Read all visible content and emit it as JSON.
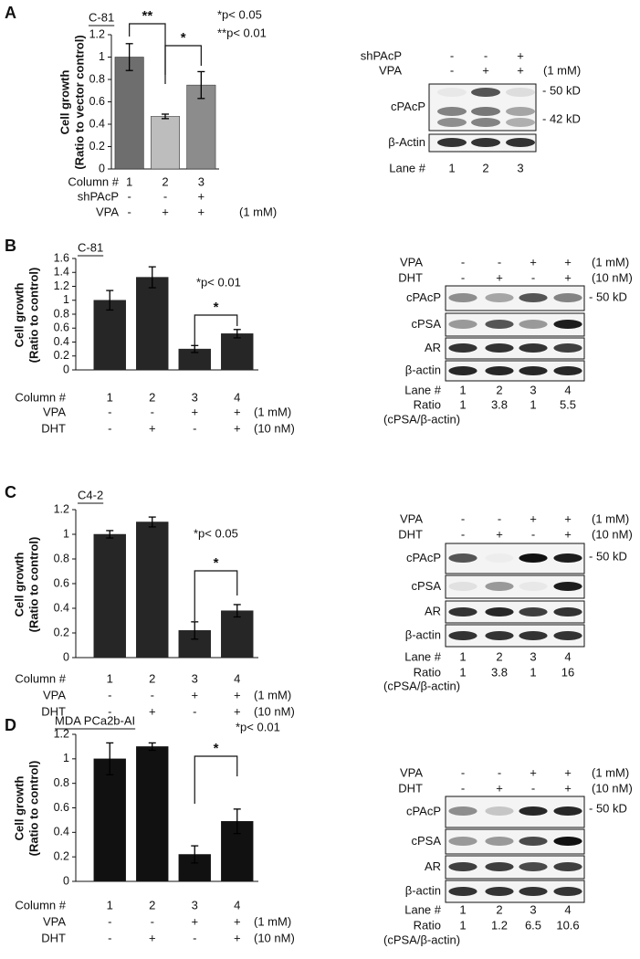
{
  "chart_data": [
    {
      "type": "bar",
      "label": "A",
      "subtitle": "C-81",
      "ylabel": [
        "Cell growth",
        "(Ratio to vector control)"
      ],
      "xlabel": "Column #",
      "categories": [
        "1",
        "2",
        "3"
      ],
      "values": [
        1,
        0.47,
        0.75
      ],
      "errors": [
        0.12,
        0.02,
        0.12
      ],
      "colors": [
        "#6e6e6e",
        "#bdbdbd",
        "#8c8c8c"
      ],
      "ylim": [
        0,
        1.2
      ],
      "yticks": [
        0,
        0.2,
        0.4,
        0.6,
        0.8,
        1,
        1.2
      ],
      "conditions": [
        {
          "name": "shPAcP",
          "values": [
            "-",
            "-",
            "+"
          ]
        },
        {
          "name": "VPA",
          "values": [
            "-",
            "+",
            "+"
          ],
          "unit": "(1 mM)"
        }
      ],
      "annotations": [
        "*p< 0.05",
        "**p< 0.01"
      ],
      "significance": [
        "**",
        "*"
      ]
    },
    {
      "type": "bar",
      "label": "B",
      "subtitle": "C-81",
      "ylabel": [
        "Cell growth",
        "(Ratio to control)"
      ],
      "xlabel": "Column #",
      "categories": [
        "1",
        "2",
        "3",
        "4"
      ],
      "values": [
        1,
        1.33,
        0.3,
        0.52
      ],
      "errors": [
        0.14,
        0.15,
        0.05,
        0.06
      ],
      "colors": [
        "#262626",
        "#262626",
        "#262626",
        "#262626"
      ],
      "ylim": [
        0,
        1.6
      ],
      "yticks": [
        0,
        0.2,
        0.4,
        0.6,
        0.8,
        1,
        1.2,
        1.4,
        1.6
      ],
      "conditions": [
        {
          "name": "VPA",
          "values": [
            "-",
            "-",
            "+",
            "+"
          ],
          "unit": "(1 mM)"
        },
        {
          "name": "DHT",
          "values": [
            "-",
            "+",
            "-",
            "+"
          ],
          "unit": "(10 nM)"
        }
      ],
      "annotations": [
        "*p< 0.01"
      ],
      "significance": [
        "*"
      ]
    },
    {
      "type": "bar",
      "label": "C",
      "subtitle": "C4-2",
      "ylabel": [
        "Cell growth",
        "(Ratio to control)"
      ],
      "xlabel": "Column #",
      "categories": [
        "1",
        "2",
        "3",
        "4"
      ],
      "values": [
        1,
        1.1,
        0.22,
        0.38
      ],
      "errors": [
        0.03,
        0.04,
        0.07,
        0.05
      ],
      "colors": [
        "#262626",
        "#262626",
        "#262626",
        "#262626"
      ],
      "ylim": [
        0,
        1.2
      ],
      "yticks": [
        0,
        0.2,
        0.4,
        0.6,
        0.8,
        1,
        1.2
      ],
      "conditions": [
        {
          "name": "VPA",
          "values": [
            "-",
            "-",
            "+",
            "+"
          ],
          "unit": "(1 mM)"
        },
        {
          "name": "DHT",
          "values": [
            "-",
            "+",
            "-",
            "+"
          ],
          "unit": "(10 nM)"
        }
      ],
      "annotations": [
        "*p< 0.05"
      ],
      "significance": [
        "*"
      ]
    },
    {
      "type": "bar",
      "label": "D",
      "subtitle": "MDA PCa2b-AI",
      "ylabel": [
        "Cell growth",
        "(Ratio to control)"
      ],
      "xlabel": "Column #",
      "categories": [
        "1",
        "2",
        "3",
        "4"
      ],
      "values": [
        1,
        1.1,
        0.22,
        0.49
      ],
      "errors": [
        0.13,
        0.03,
        0.07,
        0.1
      ],
      "colors": [
        "#111111",
        "#111111",
        "#111111",
        "#111111"
      ],
      "ylim": [
        0,
        1.2
      ],
      "yticks": [
        0,
        0.2,
        0.4,
        0.6,
        0.8,
        1,
        1.2
      ],
      "conditions": [
        {
          "name": "VPA",
          "values": [
            "-",
            "-",
            "+",
            "+"
          ],
          "unit": "(1 mM)"
        },
        {
          "name": "DHT",
          "values": [
            "-",
            "+",
            "-",
            "+"
          ],
          "unit": "(10 nM)"
        }
      ],
      "annotations": [
        "*p< 0.01"
      ],
      "significance": [
        "*"
      ]
    }
  ],
  "blots": [
    {
      "treatments": [
        {
          "name": "shPAcP",
          "values": [
            "-",
            "-",
            "+"
          ]
        },
        {
          "name": "VPA",
          "values": [
            "-",
            "+",
            "+"
          ],
          "unit": "(1 mM)"
        }
      ],
      "bands": [
        {
          "name": "cPAcP",
          "markers": [
            "- 50 kD",
            "- 42 kD"
          ]
        },
        {
          "name": "β-Actin"
        }
      ],
      "lane_label": "Lane #",
      "lanes": [
        "1",
        "2",
        "3"
      ]
    },
    {
      "treatments": [
        {
          "name": "VPA",
          "values": [
            "-",
            "-",
            "+",
            "+"
          ],
          "unit": "(1 mM)"
        },
        {
          "name": "DHT",
          "values": [
            "-",
            "+",
            "-",
            "+"
          ],
          "unit": "(10 nM)"
        }
      ],
      "bands": [
        {
          "name": "cPAcP",
          "markers": [
            "- 50 kD"
          ]
        },
        {
          "name": "cPSA"
        },
        {
          "name": "AR"
        },
        {
          "name": "β-actin"
        }
      ],
      "lane_label": "Lane #",
      "lanes": [
        "1",
        "2",
        "3",
        "4"
      ],
      "ratio": {
        "name": "Ratio",
        "values": [
          1,
          3.8,
          1,
          5.5
        ],
        "note": "(cPSA/β-actin)"
      }
    },
    {
      "treatments": [
        {
          "name": "VPA",
          "values": [
            "-",
            "-",
            "+",
            "+"
          ],
          "unit": "(1 mM)"
        },
        {
          "name": "DHT",
          "values": [
            "-",
            "+",
            "-",
            "+"
          ],
          "unit": "(10 nM)"
        }
      ],
      "bands": [
        {
          "name": "cPAcP",
          "markers": [
            "- 50 kD"
          ]
        },
        {
          "name": "cPSA"
        },
        {
          "name": "AR"
        },
        {
          "name": "β-actin"
        }
      ],
      "lane_label": "Lane #",
      "lanes": [
        "1",
        "2",
        "3",
        "4"
      ],
      "ratio": {
        "name": "Ratio",
        "values": [
          1,
          3.8,
          1,
          16
        ],
        "note": "(cPSA/β-actin)"
      }
    },
    {
      "treatments": [
        {
          "name": "VPA",
          "values": [
            "-",
            "-",
            "+",
            "+"
          ],
          "unit": "(1 mM)"
        },
        {
          "name": "DHT",
          "values": [
            "-",
            "+",
            "-",
            "+"
          ],
          "unit": "(10 nM)"
        }
      ],
      "bands": [
        {
          "name": "cPAcP",
          "markers": [
            "- 50 kD"
          ]
        },
        {
          "name": "cPSA"
        },
        {
          "name": "AR"
        },
        {
          "name": "β-actin"
        }
      ],
      "lane_label": "Lane #",
      "lanes": [
        "1",
        "2",
        "3",
        "4"
      ],
      "ratio": {
        "name": "Ratio",
        "values": [
          1,
          1.2,
          6.5,
          10.6
        ],
        "note": "(cPSA/β-actin)"
      }
    }
  ]
}
